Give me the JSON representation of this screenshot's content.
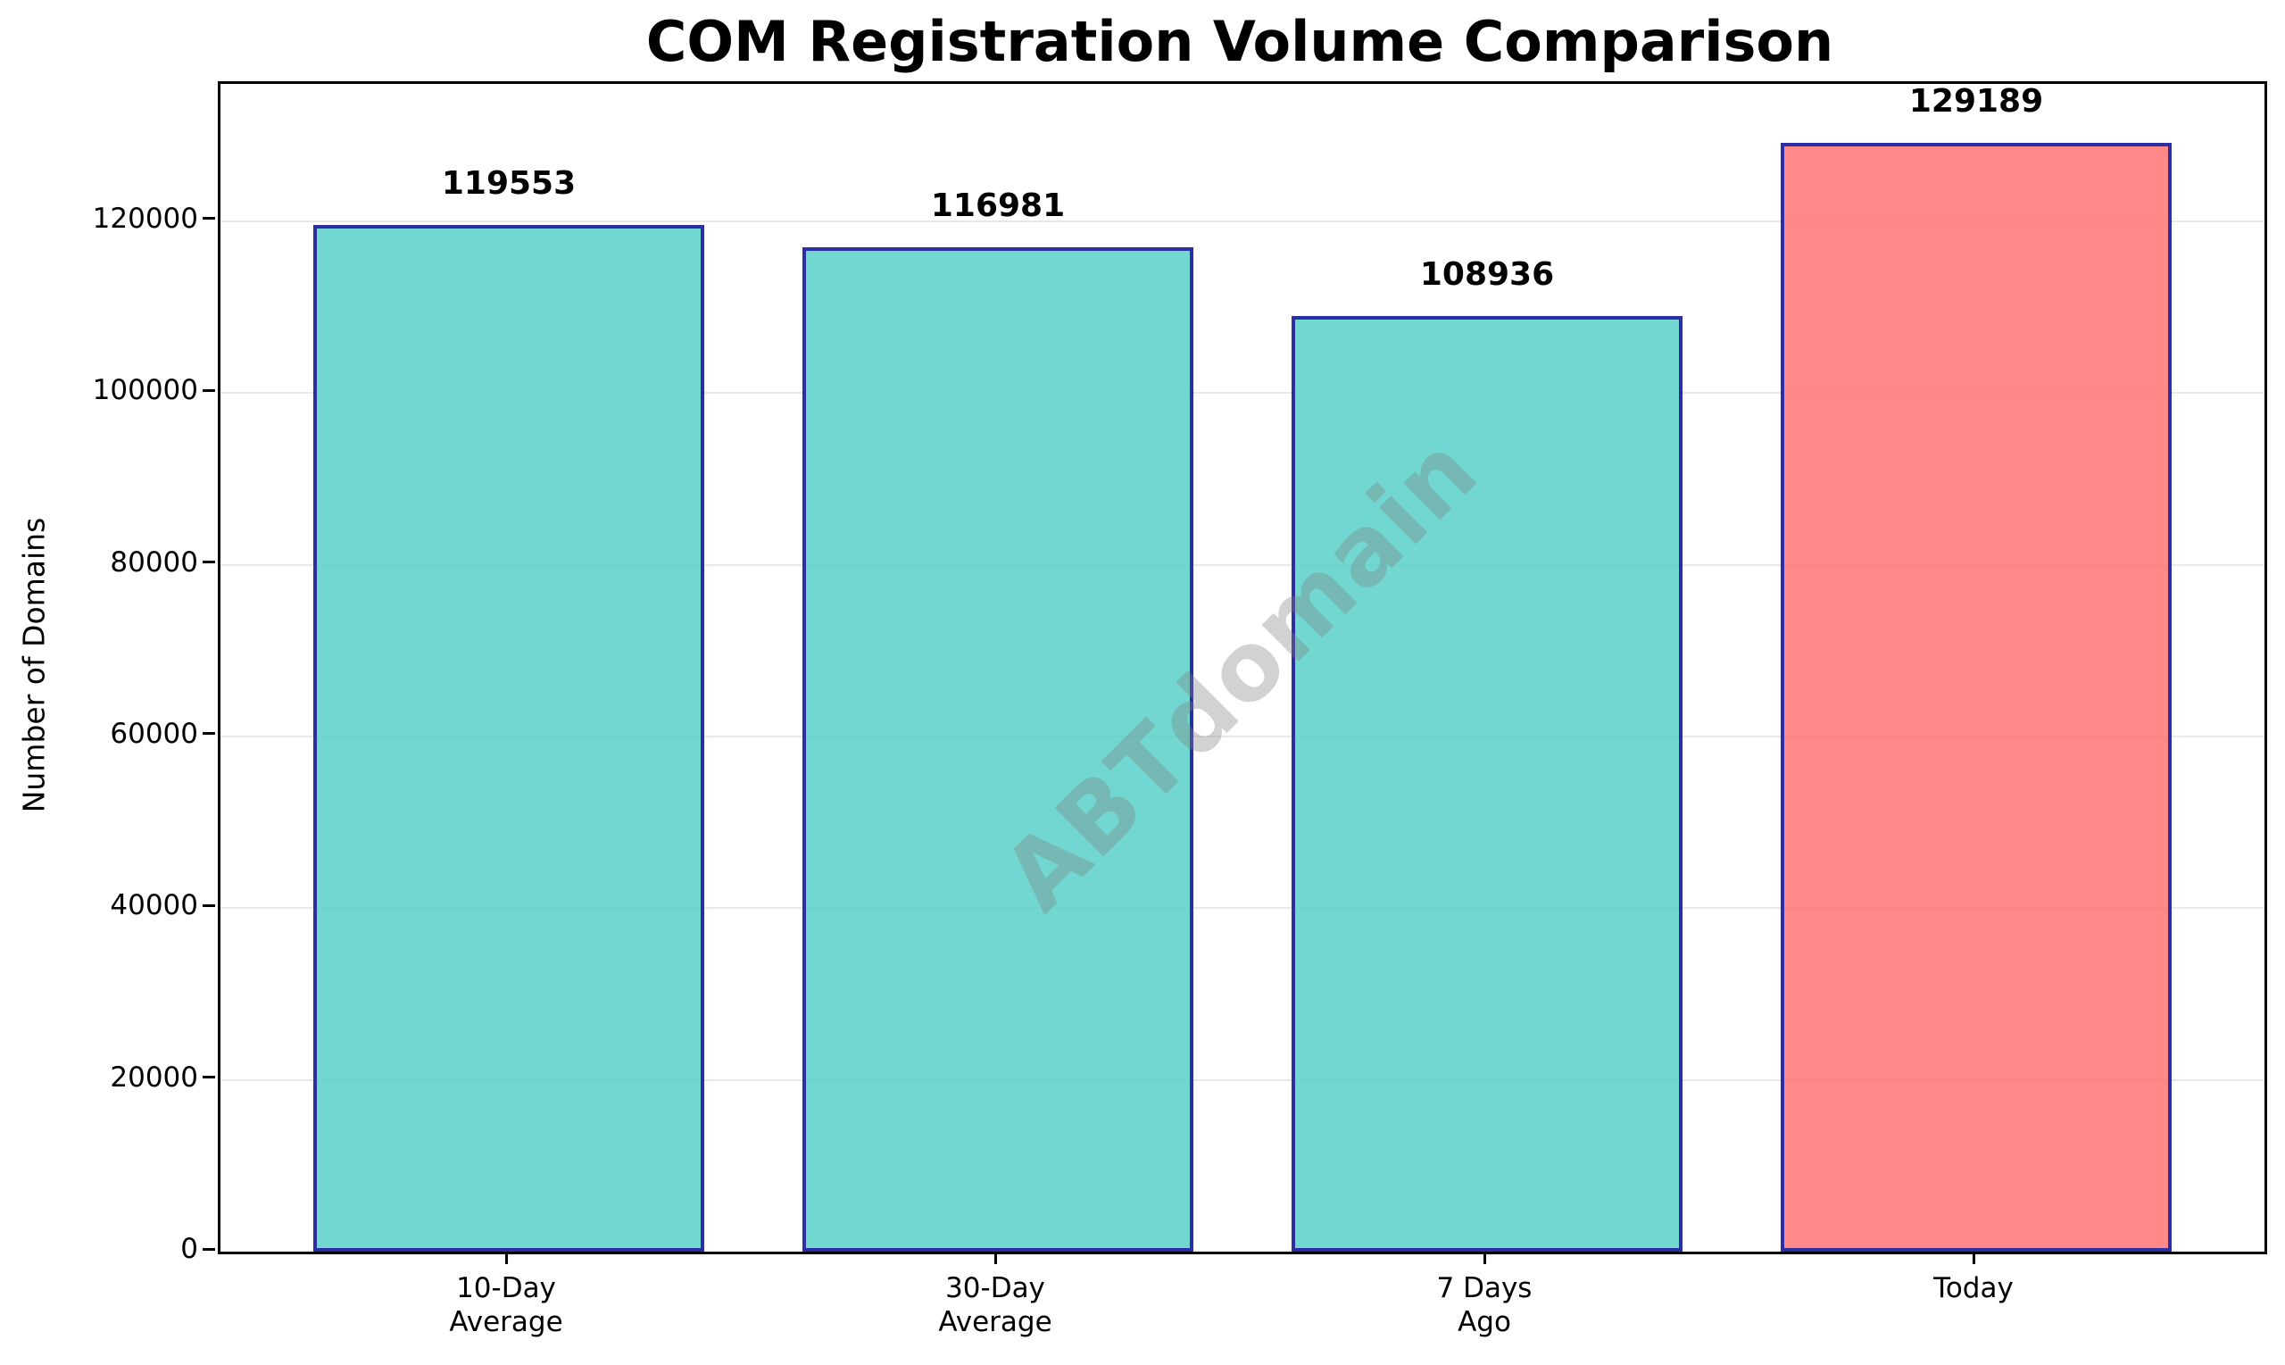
{
  "figure": {
    "background_color": "#FFFFFF"
  },
  "chart_data": {
    "type": "bar",
    "title": "COM Registration Volume Comparison",
    "ylabel": "Number of Domains",
    "categories": [
      "10-Day\nAverage",
      "30-Day\nAverage",
      "7 Days\nAgo",
      "Today"
    ],
    "values": [
      119553,
      116981,
      108936,
      129189
    ],
    "bar_labels": [
      "119553",
      "116981",
      "108936",
      "129189"
    ],
    "bar_colors": [
      "#4ECDC4",
      "#4ECDC4",
      "#4ECDC4",
      "#FF6B6B"
    ],
    "bar_alpha": 0.8,
    "bar_edge_color": "#2C2FA3",
    "ylim": [
      0,
      136000
    ],
    "yticks": [
      0,
      20000,
      40000,
      60000,
      80000,
      100000,
      120000
    ],
    "ytick_labels": [
      "0",
      "20000",
      "40000",
      "60000",
      "80000",
      "100000",
      "120000"
    ],
    "grid": "horizontal",
    "gridline_color": "#E8E8E8",
    "legend_position": "none",
    "watermark": {
      "text": "ABTdomain",
      "color": "#808080",
      "opacity": 0.35,
      "rotation_deg": -45
    }
  }
}
